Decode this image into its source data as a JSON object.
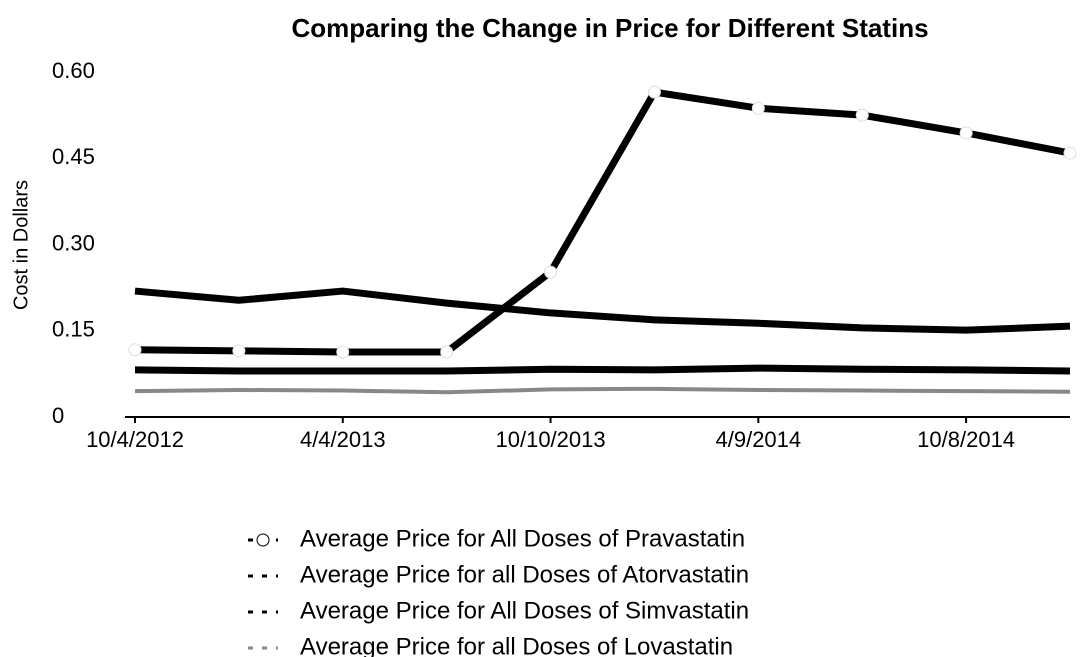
{
  "chart_data": {
    "type": "line",
    "title": "Comparing the Change in Price for Different Statins",
    "y_label": "Cost in Dollars",
    "categories": [
      "10/4/2012",
      null,
      "4/4/2013",
      null,
      "10/10/2013",
      null,
      "4/9/2014",
      null,
      "10/8/2014",
      null
    ],
    "series": [
      {
        "name": "Average Price for All Doses of Pravastatin",
        "color": "#000000",
        "marker": "circle",
        "values": [
          0.117,
          0.115,
          0.113,
          0.113,
          0.252,
          0.565,
          0.537,
          0.525,
          0.494,
          0.459
        ]
      },
      {
        "name": "Average Price for all Doses of Atorvastatin",
        "color": "#000000",
        "values": [
          0.219,
          0.203,
          0.219,
          0.198,
          0.181,
          0.169,
          0.163,
          0.155,
          0.151,
          0.158
        ]
      },
      {
        "name": "Average Price for All Doses of Simvastatin",
        "color": "#000000",
        "values": [
          0.082,
          0.08,
          0.08,
          0.08,
          0.083,
          0.082,
          0.085,
          0.083,
          0.082,
          0.08
        ]
      },
      {
        "name": "Average Price for all Doses of Lovastatin",
        "color": "#888888",
        "values": [
          0.045,
          0.047,
          0.046,
          0.043,
          0.048,
          0.049,
          0.047,
          0.046,
          0.045,
          0.044
        ]
      }
    ],
    "ylim": [
      0,
      0.6
    ],
    "yticks": [
      0,
      0.15,
      {
        "value": 0.3,
        "label": "0.30"
      },
      0.45,
      {
        "value": 0.6,
        "label": "0.60"
      }
    ],
    "grid": false
  }
}
